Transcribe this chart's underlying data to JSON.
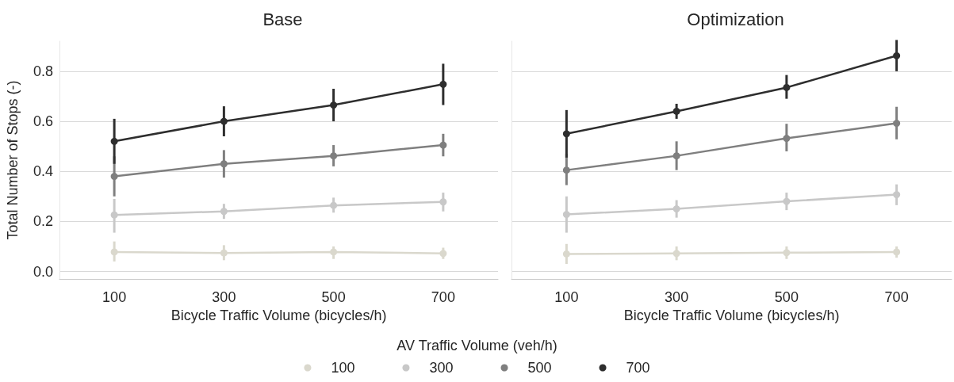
{
  "chart_data": [
    {
      "type": "line",
      "title": "Base",
      "xlabel": "Bicycle Traffic Volume (bicycles/h)",
      "ylabel": "Total Number of Stops (-)",
      "legend_title": "AV Traffic Volume (veh/h)",
      "legend": "bottom",
      "grid": "y",
      "marker": "circle",
      "line_style": "solid",
      "categories": [
        "100",
        "300",
        "500",
        "700"
      ],
      "ylim": [
        -0.03,
        0.92
      ],
      "yticks": [
        {
          "value": 0,
          "label": "0.0"
        },
        {
          "value": 0.2,
          "label": "0.2"
        },
        {
          "value": 0.4,
          "label": "0.4"
        },
        {
          "value": 0.6,
          "label": "0.6"
        },
        {
          "value": 0.8,
          "label": "0.8"
        }
      ],
      "series": [
        {
          "name": "100",
          "color": "#dad8cd",
          "values": [
            0.078,
            0.074,
            0.078,
            0.072
          ],
          "errors": [
            [
              0.04,
              0.12
            ],
            [
              0.045,
              0.105
            ],
            [
              0.05,
              0.1
            ],
            [
              0.05,
              0.095
            ]
          ]
        },
        {
          "name": "300",
          "color": "#c8c8c8",
          "values": [
            0.226,
            0.24,
            0.264,
            0.278
          ],
          "errors": [
            [
              0.155,
              0.29
            ],
            [
              0.21,
              0.27
            ],
            [
              0.235,
              0.295
            ],
            [
              0.24,
              0.315
            ]
          ]
        },
        {
          "name": "500",
          "color": "#7f7f7f",
          "values": [
            0.38,
            0.43,
            0.462,
            0.505
          ],
          "errors": [
            [
              0.3,
              0.46
            ],
            [
              0.375,
              0.485
            ],
            [
              0.42,
              0.505
            ],
            [
              0.46,
              0.55
            ]
          ]
        },
        {
          "name": "700",
          "color": "#2e2e2e",
          "values": [
            0.52,
            0.6,
            0.665,
            0.748
          ],
          "errors": [
            [
              0.43,
              0.61
            ],
            [
              0.54,
              0.66
            ],
            [
              0.6,
              0.73
            ],
            [
              0.665,
              0.83
            ]
          ]
        }
      ]
    },
    {
      "type": "line",
      "title": "Optimization",
      "xlabel": "Bicycle Traffic Volume (bicycles/h)",
      "grid": "y",
      "marker": "circle",
      "line_style": "solid",
      "tick_labels": "x",
      "categories": [
        "100",
        "300",
        "500",
        "700"
      ],
      "ylim": [
        -0.03,
        0.92
      ],
      "yticks": [
        0,
        0.2,
        0.4,
        0.6,
        0.8
      ],
      "series": [
        {
          "name": "100",
          "color": "#dad8cd",
          "values": [
            0.07,
            0.072,
            0.075,
            0.078
          ],
          "errors": [
            [
              0.03,
              0.11
            ],
            [
              0.045,
              0.1
            ],
            [
              0.05,
              0.1
            ],
            [
              0.055,
              0.1
            ]
          ]
        },
        {
          "name": "300",
          "color": "#c8c8c8",
          "values": [
            0.228,
            0.25,
            0.28,
            0.307
          ],
          "errors": [
            [
              0.155,
              0.3
            ],
            [
              0.215,
              0.285
            ],
            [
              0.245,
              0.315
            ],
            [
              0.265,
              0.348
            ]
          ]
        },
        {
          "name": "500",
          "color": "#7f7f7f",
          "values": [
            0.405,
            0.462,
            0.532,
            0.592
          ],
          "errors": [
            [
              0.345,
              0.47
            ],
            [
              0.405,
              0.52
            ],
            [
              0.48,
              0.59
            ],
            [
              0.528,
              0.658
            ]
          ]
        },
        {
          "name": "700",
          "color": "#2e2e2e",
          "values": [
            0.55,
            0.64,
            0.735,
            0.862
          ],
          "errors": [
            [
              0.455,
              0.645
            ],
            [
              0.61,
              0.67
            ],
            [
              0.69,
              0.785
            ],
            [
              0.8,
              0.925
            ]
          ]
        }
      ]
    }
  ]
}
